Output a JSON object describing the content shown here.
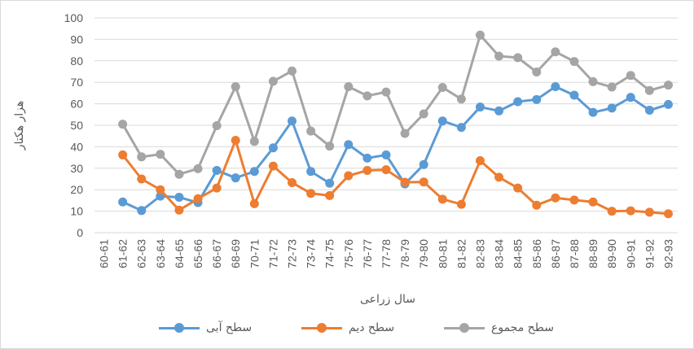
{
  "chart_data": {
    "type": "line",
    "title": "",
    "xlabel": "سال زراعی",
    "ylabel": "هزار هکتار",
    "ylim": [
      0,
      100
    ],
    "yticks": [
      0,
      10,
      20,
      30,
      40,
      50,
      60,
      70,
      80,
      90,
      100
    ],
    "grid": true,
    "legend_position": "bottom",
    "categories": [
      "60-61",
      "61-62",
      "62-63",
      "63-64",
      "64-65",
      "65-66",
      "66-67",
      "68-69",
      "70-71",
      "71-72",
      "72-73",
      "73-74",
      "74-75",
      "75-76",
      "76-77",
      "77-78",
      "78-79",
      "79-80",
      "80-81",
      "81-82",
      "82-83",
      "83-84",
      "84-85",
      "85-86",
      "86-87",
      "87-88",
      "88-89",
      "89-90",
      "90-91",
      "91-92",
      "92-93"
    ],
    "series": [
      {
        "name": "سطح آبی",
        "color": "#5b9bd5",
        "values": [
          null,
          14.3,
          10.3,
          17,
          16.5,
          14,
          29,
          25.5,
          28.5,
          39.5,
          52,
          28.5,
          23,
          41,
          34.7,
          36.2,
          22.7,
          31.7,
          52,
          49,
          58.5,
          56.7,
          61,
          62,
          68,
          64,
          56,
          58,
          63,
          57,
          59.7
        ]
      },
      {
        "name": "سطح دیم",
        "color": "#ed7d31",
        "values": [
          null,
          36.2,
          25,
          20,
          10.5,
          15.8,
          20.8,
          43,
          13.5,
          31,
          23.3,
          18.3,
          17.3,
          26.5,
          29,
          29.3,
          23.5,
          23.6,
          15.6,
          13.2,
          33.5,
          25.8,
          20.8,
          12.8,
          16.2,
          15.2,
          14.3,
          10,
          10.2,
          9.5,
          8.8
        ]
      },
      {
        "name": "سطح مجموع",
        "color": "#a5a5a5",
        "values": [
          null,
          50.5,
          35.3,
          36.5,
          27.2,
          29.8,
          49.8,
          68,
          42.5,
          70.5,
          75.3,
          47.3,
          40.3,
          68,
          63.7,
          65.5,
          46.2,
          55.3,
          67.6,
          62.2,
          92,
          82.2,
          81.5,
          74.8,
          84.2,
          79.7,
          70.3,
          67.8,
          73.2,
          66.2,
          68.7
        ]
      }
    ]
  }
}
